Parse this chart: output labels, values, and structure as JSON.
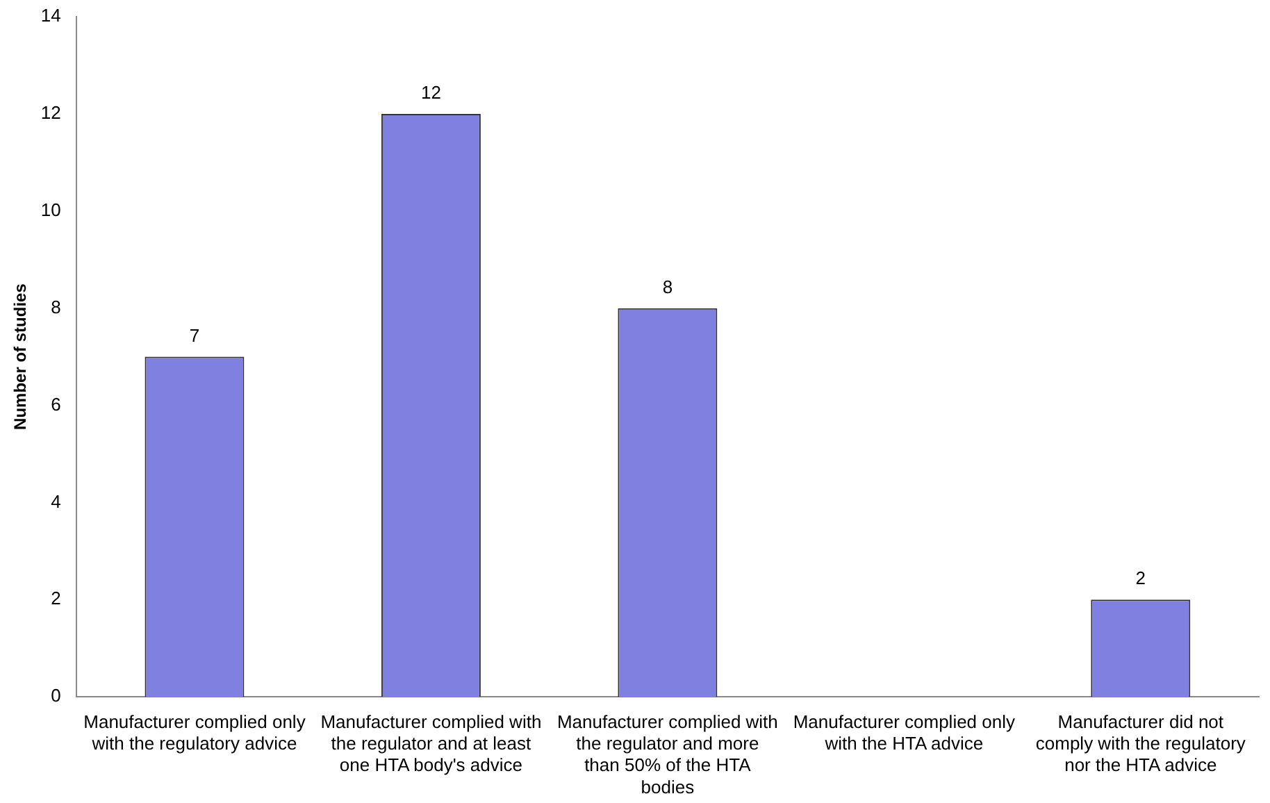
{
  "chart_data": {
    "type": "bar",
    "ylabel": "Number of studies",
    "categories": [
      "Manufacturer complied only with the regulatory advice",
      "Manufacturer complied with the regulator and at least one HTA body's advice",
      "Manufacturer complied with the regulator and more than 50% of the HTA bodies",
      "Manufacturer complied only with the HTA advice",
      "Manufacturer did not comply with the regulatory nor the HTA advice"
    ],
    "values": [
      7,
      12,
      8,
      0,
      2
    ],
    "value_labels": [
      "7",
      "12",
      "8",
      null,
      "2"
    ],
    "color": "#8080e0",
    "ylim": [
      0,
      14
    ],
    "yticks": [
      0,
      2,
      4,
      6,
      8,
      10,
      12,
      14
    ],
    "grid": false,
    "legend": false
  }
}
